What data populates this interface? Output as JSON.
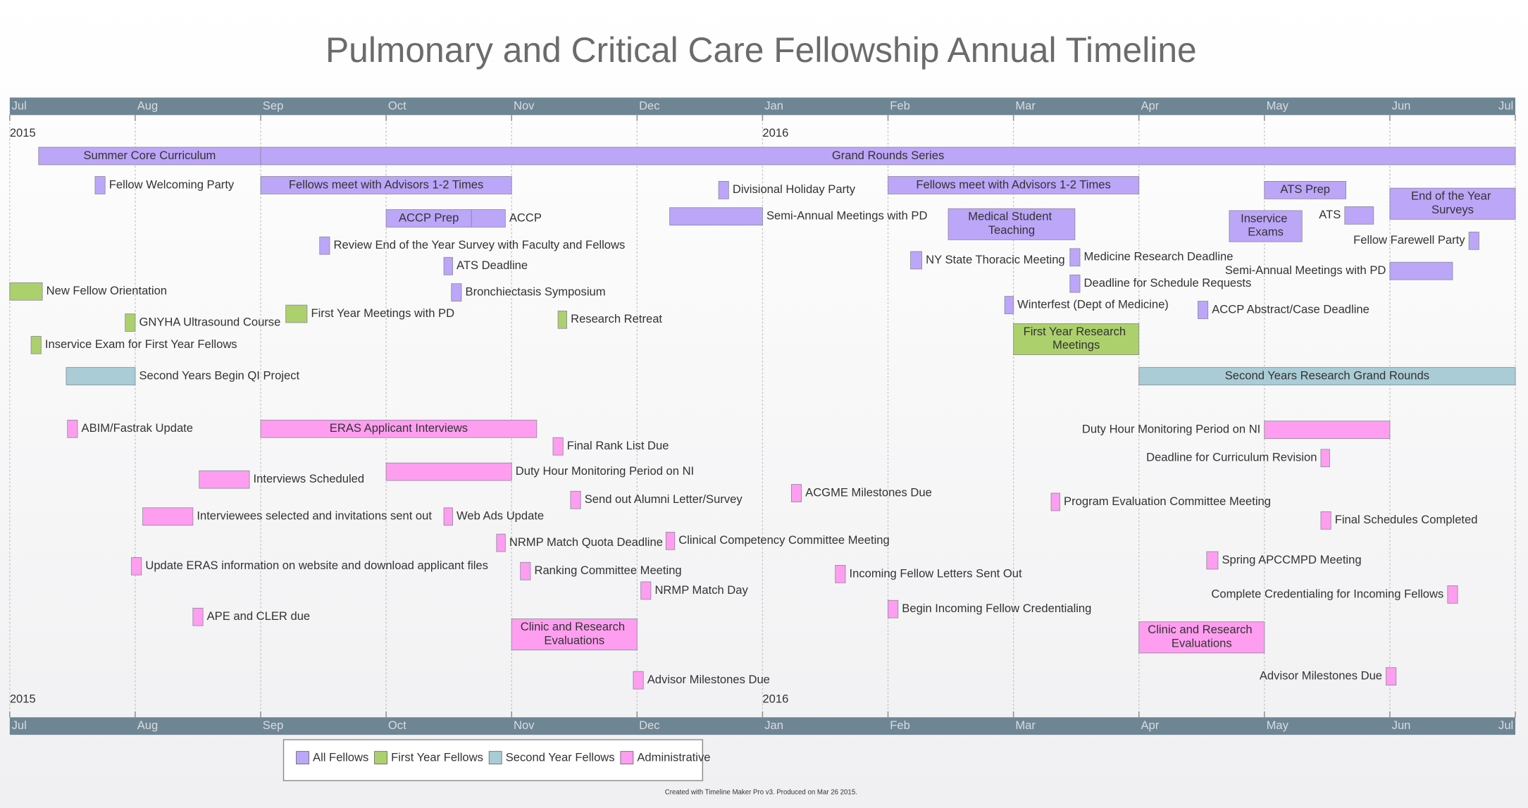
{
  "chart_data": {
    "type": "timeline",
    "title": "Pulmonary and Critical Care Fellowship Annual Timeline",
    "xlim": [
      0,
      12
    ],
    "xticks": [
      {
        "value": 0,
        "label": "Jul"
      },
      {
        "value": 1,
        "label": "Aug"
      },
      {
        "value": 2,
        "label": "Sep"
      },
      {
        "value": 3,
        "label": "Oct"
      },
      {
        "value": 4,
        "label": "Nov"
      },
      {
        "value": 5,
        "label": "Dec"
      },
      {
        "value": 6,
        "label": "Jan"
      },
      {
        "value": 7,
        "label": "Feb"
      },
      {
        "value": 8,
        "label": "Mar"
      },
      {
        "value": 9,
        "label": "Apr"
      },
      {
        "value": 10,
        "label": "May"
      },
      {
        "value": 11,
        "label": "Jun"
      },
      {
        "value": 12,
        "label": "Jul"
      }
    ],
    "year_ticks": [
      {
        "value": 0,
        "label": "2015"
      },
      {
        "value": 6,
        "label": "2016"
      }
    ],
    "grid": true,
    "series": [
      {
        "name": "All Fellows",
        "color": "#bca6f8"
      },
      {
        "name": "First Year Fellows",
        "color": "#acd06c"
      },
      {
        "name": "Second Year Fellows",
        "color": "#a9ccd6"
      },
      {
        "name": "Administrative",
        "color": "#ff9ef0"
      }
    ],
    "events": [
      {
        "label": "Summer Core Curriculum",
        "start": 0.23,
        "end": 2.0,
        "series": 0
      },
      {
        "label": "Grand Rounds Series",
        "start": 2.0,
        "end": 12.0,
        "series": 0
      },
      {
        "label": "Fellow Welcoming Party",
        "start": 0.68,
        "end": 0.76,
        "series": 0
      },
      {
        "label": "Fellows meet with Advisors 1-2 Times",
        "start": 2.0,
        "end": 4.0,
        "series": 0
      },
      {
        "label": "Divisional Holiday Party",
        "start": 5.65,
        "end": 5.73,
        "series": 0
      },
      {
        "label": "Fellows meet with Advisors 1-2 Times",
        "start": 7.0,
        "end": 9.0,
        "series": 0
      },
      {
        "label": "ATS Prep",
        "start": 10.0,
        "end": 10.65,
        "series": 0
      },
      {
        "label": "End of the Year Surveys",
        "start": 11.0,
        "end": 12.0,
        "series": 0
      },
      {
        "label": "ACCP Prep",
        "start": 3.0,
        "end": 3.68,
        "series": 0
      },
      {
        "label": "ACCP",
        "start": 3.68,
        "end": 3.95,
        "series": 0
      },
      {
        "label": "Semi-Annual Meetings with PD",
        "start": 5.26,
        "end": 6.0,
        "series": 0
      },
      {
        "label": "Medical Student Teaching",
        "start": 7.48,
        "end": 8.49,
        "series": 0
      },
      {
        "label": "Inservice Exams",
        "start": 9.72,
        "end": 10.3,
        "series": 0
      },
      {
        "label": "ATS",
        "start": 10.64,
        "end": 10.87,
        "series": 0
      },
      {
        "label": "Fellow Farewell Party",
        "start": 11.63,
        "end": 11.71,
        "series": 0
      },
      {
        "label": "Review End of the Year Survey with Faculty and Fellows",
        "start": 2.47,
        "end": 2.55,
        "series": 0
      },
      {
        "label": "ATS Deadline",
        "start": 3.46,
        "end": 3.53,
        "series": 0
      },
      {
        "label": "NY State Thoracic Meeting",
        "start": 7.18,
        "end": 7.27,
        "series": 0
      },
      {
        "label": "Medicine Research Deadline",
        "start": 8.45,
        "end": 8.53,
        "series": 0
      },
      {
        "label": "Semi-Annual Meetings with PD",
        "start": 11.0,
        "end": 11.5,
        "series": 0
      },
      {
        "label": "New Fellow Orientation",
        "start": 0.0,
        "end": 0.26,
        "series": 1
      },
      {
        "label": "Bronchiectasis Symposium",
        "start": 3.52,
        "end": 3.6,
        "series": 0
      },
      {
        "label": "Deadline for Schedule Requests",
        "start": 8.45,
        "end": 8.53,
        "series": 0
      },
      {
        "label": "GNYHA Ultrasound Course",
        "start": 0.92,
        "end": 1.0,
        "series": 1
      },
      {
        "label": "First Year Meetings with PD",
        "start": 2.2,
        "end": 2.37,
        "series": 1
      },
      {
        "label": "Research Retreat",
        "start": 4.37,
        "end": 4.44,
        "series": 1
      },
      {
        "label": "Winterfest (Dept of Medicine)",
        "start": 7.93,
        "end": 8.0,
        "series": 0
      },
      {
        "label": "ACCP Abstract/Case Deadline",
        "start": 9.47,
        "end": 9.55,
        "series": 0
      },
      {
        "label": "First Year Research Meetings",
        "start": 8.0,
        "end": 9.0,
        "series": 1
      },
      {
        "label": "Inservice Exam for First Year Fellows",
        "start": 0.17,
        "end": 0.25,
        "series": 1
      },
      {
        "label": "Second Years Begin QI Project",
        "start": 0.45,
        "end": 1.0,
        "series": 2
      },
      {
        "label": "Second Years Research Grand Rounds",
        "start": 9.0,
        "end": 12.0,
        "series": 2
      },
      {
        "label": "ABIM/Fastrak Update",
        "start": 0.46,
        "end": 0.54,
        "series": 3
      },
      {
        "label": "ERAS Applicant Interviews",
        "start": 2.0,
        "end": 4.2,
        "series": 3
      },
      {
        "label": "Duty Hour Monitoring Period on NI",
        "start": 10.0,
        "end": 11.0,
        "series": 3
      },
      {
        "label": "Final Rank List Due",
        "start": 4.33,
        "end": 4.41,
        "series": 3
      },
      {
        "label": "Deadline for Curriculum Revision",
        "start": 10.45,
        "end": 10.52,
        "series": 3
      },
      {
        "label": "Interviews Scheduled",
        "start": 1.51,
        "end": 1.91,
        "series": 3
      },
      {
        "label": "Duty Hour Monitoring Period on NI",
        "start": 3.0,
        "end": 4.0,
        "series": 3
      },
      {
        "label": "Send out Alumni Letter/Survey",
        "start": 4.47,
        "end": 4.55,
        "series": 3
      },
      {
        "label": "ACGME Milestones Due",
        "start": 6.23,
        "end": 6.31,
        "series": 3
      },
      {
        "label": "Program Evaluation Committee Meeting",
        "start": 8.3,
        "end": 8.37,
        "series": 3
      },
      {
        "label": "Final Schedules Completed",
        "start": 10.45,
        "end": 10.53,
        "series": 3
      },
      {
        "label": "Interviewees selected and invitations sent out",
        "start": 1.06,
        "end": 1.46,
        "series": 3
      },
      {
        "label": "Web Ads Update",
        "start": 3.46,
        "end": 3.53,
        "series": 3
      },
      {
        "label": "NRMP Match Quota Deadline",
        "start": 3.88,
        "end": 3.95,
        "series": 3
      },
      {
        "label": "Clinical Competency Committee Meeting",
        "start": 5.23,
        "end": 5.3,
        "series": 3
      },
      {
        "label": "Spring APCCMPD Meeting",
        "start": 9.54,
        "end": 9.63,
        "series": 3
      },
      {
        "label": "Update ERAS information on website and download applicant files",
        "start": 0.97,
        "end": 1.05,
        "series": 3
      },
      {
        "label": "Ranking Committee Meeting",
        "start": 4.07,
        "end": 4.15,
        "series": 3
      },
      {
        "label": "Incoming Fellow Letters Sent Out",
        "start": 6.58,
        "end": 6.66,
        "series": 3
      },
      {
        "label": "Complete Credentialing for Incoming Fellows",
        "start": 11.46,
        "end": 11.54,
        "series": 3
      },
      {
        "label": "NRMP Match Day",
        "start": 5.03,
        "end": 5.11,
        "series": 3
      },
      {
        "label": "Begin Incoming Fellow Credentialing",
        "start": 7.0,
        "end": 7.08,
        "series": 3
      },
      {
        "label": "APE and CLER due",
        "start": 1.46,
        "end": 1.54,
        "series": 3
      },
      {
        "label": "Clinic and Research Evaluations",
        "start": 4.0,
        "end": 5.0,
        "series": 3
      },
      {
        "label": "Clinic and Research Evaluations",
        "start": 9.0,
        "end": 10.0,
        "series": 3
      },
      {
        "label": "Advisor Milestones Due",
        "start": 4.97,
        "end": 5.05,
        "series": 3
      },
      {
        "label": "Advisor Milestones Due",
        "start": 10.97,
        "end": 11.05,
        "series": 3
      }
    ],
    "footer": "Created with Timeline Maker Pro v3. Produced on Mar 26 2015."
  }
}
